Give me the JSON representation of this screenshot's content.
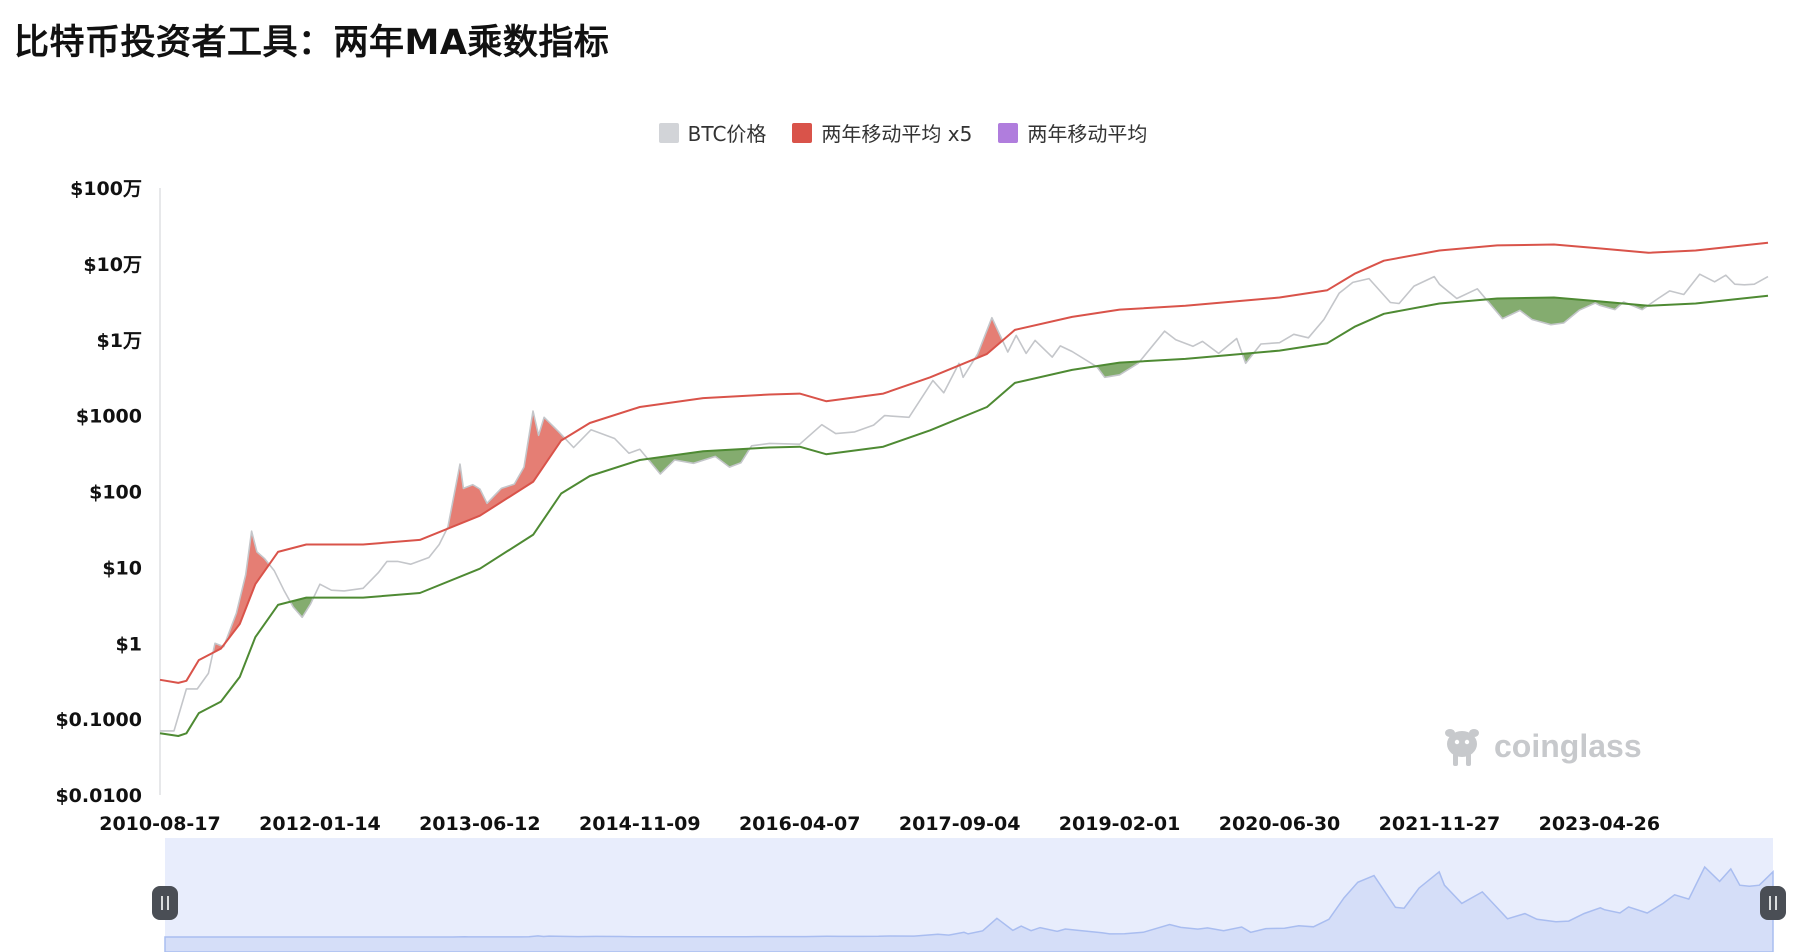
{
  "header": {
    "title": "比特币投资者工具：两年MA乘数指标"
  },
  "legend": [
    {
      "label": "BTC价格",
      "color": "#d2d4d8"
    },
    {
      "label": "两年移动平均 x5",
      "color": "#d9534a"
    },
    {
      "label": "两年移动平均",
      "color": "#b07ddd"
    }
  ],
  "watermark": {
    "text": "coinglass"
  },
  "colors": {
    "price": "#c4c6ca",
    "ma2y": "#4e8a33",
    "ma2y_x5": "#d9534a",
    "buy_fill": "#6e9e56",
    "sell_fill": "#e0675c",
    "navigator_bg": "#e8edfc",
    "navigator_line": "#a9bdf0"
  },
  "chart_data": {
    "type": "line",
    "y_scale": "log",
    "ylim": [
      0.01,
      1000000
    ],
    "y_ticks": [
      {
        "value": 0.01,
        "label": "$0.0100"
      },
      {
        "value": 0.1,
        "label": "$0.1000"
      },
      {
        "value": 1,
        "label": "$1"
      },
      {
        "value": 10,
        "label": "$10"
      },
      {
        "value": 100,
        "label": "$100"
      },
      {
        "value": 1000,
        "label": "$1000"
      },
      {
        "value": 10000,
        "label": "$1万"
      },
      {
        "value": 100000,
        "label": "$10万"
      },
      {
        "value": 1000000,
        "label": "$100万"
      }
    ],
    "xlim": [
      "2010-08-17",
      "2024-10-20"
    ],
    "x_ticks": [
      "2010-08-17",
      "2012-01-14",
      "2013-06-12",
      "2014-11-09",
      "2016-04-07",
      "2017-09-04",
      "2019-02-01",
      "2020-06-30",
      "2021-11-27",
      "2023-04-26"
    ],
    "series": [
      {
        "name": "BTC价格",
        "points": [
          [
            "2010-08-17",
            0.07
          ],
          [
            "2010-10-01",
            0.07
          ],
          [
            "2010-11-10",
            0.25
          ],
          [
            "2010-12-15",
            0.25
          ],
          [
            "2011-01-20",
            0.4
          ],
          [
            "2011-02-10",
            1
          ],
          [
            "2011-03-10",
            0.9
          ],
          [
            "2011-04-20",
            2.5
          ],
          [
            "2011-05-20",
            8
          ],
          [
            "2011-06-08",
            30
          ],
          [
            "2011-06-25",
            16
          ],
          [
            "2011-07-20",
            13
          ],
          [
            "2011-08-20",
            9
          ],
          [
            "2011-09-20",
            5
          ],
          [
            "2011-10-20",
            3
          ],
          [
            "2011-11-18",
            2.2
          ],
          [
            "2011-12-15",
            3.3
          ],
          [
            "2012-01-14",
            6
          ],
          [
            "2012-02-20",
            5
          ],
          [
            "2012-04-01",
            4.9
          ],
          [
            "2012-06-01",
            5.3
          ],
          [
            "2012-07-20",
            8.5
          ],
          [
            "2012-08-17",
            12
          ],
          [
            "2012-09-20",
            12
          ],
          [
            "2012-11-01",
            11
          ],
          [
            "2012-12-30",
            13.5
          ],
          [
            "2013-02-01",
            20
          ],
          [
            "2013-03-01",
            34
          ],
          [
            "2013-04-09",
            230
          ],
          [
            "2013-04-20",
            110
          ],
          [
            "2013-05-20",
            123
          ],
          [
            "2013-06-12",
            108
          ],
          [
            "2013-07-05",
            70
          ],
          [
            "2013-08-20",
            110
          ],
          [
            "2013-10-01",
            125
          ],
          [
            "2013-11-01",
            210
          ],
          [
            "2013-11-30",
            1150
          ],
          [
            "2013-12-18",
            550
          ],
          [
            "2014-01-05",
            950
          ],
          [
            "2014-02-20",
            620
          ],
          [
            "2014-04-10",
            380
          ],
          [
            "2014-06-05",
            650
          ],
          [
            "2014-08-20",
            500
          ],
          [
            "2014-10-05",
            320
          ],
          [
            "2014-11-09",
            360
          ],
          [
            "2015-01-14",
            170
          ],
          [
            "2015-03-01",
            260
          ],
          [
            "2015-05-01",
            235
          ],
          [
            "2015-07-10",
            290
          ],
          [
            "2015-08-25",
            210
          ],
          [
            "2015-10-01",
            240
          ],
          [
            "2015-11-04",
            400
          ],
          [
            "2016-01-01",
            430
          ],
          [
            "2016-04-07",
            420
          ],
          [
            "2016-06-17",
            760
          ],
          [
            "2016-08-01",
            580
          ],
          [
            "2016-10-01",
            610
          ],
          [
            "2016-12-01",
            750
          ],
          [
            "2017-01-05",
            1000
          ],
          [
            "2017-03-25",
            950
          ],
          [
            "2017-06-10",
            2900
          ],
          [
            "2017-07-15",
            2000
          ],
          [
            "2017-09-02",
            4900
          ],
          [
            "2017-09-15",
            3200
          ],
          [
            "2017-11-01",
            6500
          ],
          [
            "2017-12-17",
            19500
          ],
          [
            "2018-02-06",
            6900
          ],
          [
            "2018-03-05",
            11400
          ],
          [
            "2018-04-06",
            6600
          ],
          [
            "2018-05-05",
            9800
          ],
          [
            "2018-06-29",
            5900
          ],
          [
            "2018-07-25",
            8300
          ],
          [
            "2018-09-01",
            7000
          ],
          [
            "2018-11-20",
            4400
          ],
          [
            "2018-12-15",
            3200
          ],
          [
            "2019-02-01",
            3450
          ],
          [
            "2019-04-02",
            4900
          ],
          [
            "2019-06-26",
            13000
          ],
          [
            "2019-08-01",
            10000
          ],
          [
            "2019-09-25",
            8200
          ],
          [
            "2019-10-26",
            9500
          ],
          [
            "2019-12-17",
            6600
          ],
          [
            "2020-02-13",
            10400
          ],
          [
            "2020-03-13",
            4900
          ],
          [
            "2020-05-01",
            8800
          ],
          [
            "2020-06-30",
            9150
          ],
          [
            "2020-08-15",
            11800
          ],
          [
            "2020-10-01",
            10600
          ],
          [
            "2020-11-20",
            18500
          ],
          [
            "2021-01-08",
            41000
          ],
          [
            "2021-02-21",
            57000
          ],
          [
            "2021-04-14",
            64000
          ],
          [
            "2021-06-22",
            31000
          ],
          [
            "2021-07-20",
            30000
          ],
          [
            "2021-09-06",
            51000
          ],
          [
            "2021-11-10",
            68000
          ],
          [
            "2021-11-27",
            54000
          ],
          [
            "2022-01-22",
            35000
          ],
          [
            "2022-03-29",
            47000
          ],
          [
            "2022-06-18",
            19000
          ],
          [
            "2022-08-13",
            24400
          ],
          [
            "2022-09-21",
            18500
          ],
          [
            "2022-11-21",
            15800
          ],
          [
            "2023-01-01",
            16600
          ],
          [
            "2023-02-20",
            24500
          ],
          [
            "2023-04-13",
            30500
          ],
          [
            "2023-04-26",
            28500
          ],
          [
            "2023-06-15",
            25000
          ],
          [
            "2023-07-13",
            31400
          ],
          [
            "2023-09-11",
            25000
          ],
          [
            "2023-11-01",
            35000
          ],
          [
            "2023-12-08",
            44000
          ],
          [
            "2024-01-23",
            39500
          ],
          [
            "2024-03-14",
            73000
          ],
          [
            "2024-05-01",
            58000
          ],
          [
            "2024-06-06",
            71000
          ],
          [
            "2024-07-05",
            54000
          ],
          [
            "2024-08-05",
            53000
          ],
          [
            "2024-09-06",
            54000
          ],
          [
            "2024-10-20",
            68000
          ]
        ]
      },
      {
        "name": "两年移动平均 x5",
        "points": [
          [
            "2010-08-17",
            0.33
          ],
          [
            "2010-10-15",
            0.3
          ],
          [
            "2010-11-10",
            0.32
          ],
          [
            "2010-12-20",
            0.6
          ],
          [
            "2011-03-01",
            0.85
          ],
          [
            "2011-05-01",
            1.8
          ],
          [
            "2011-06-20",
            6
          ],
          [
            "2011-09-01",
            16
          ],
          [
            "2011-12-01",
            20
          ],
          [
            "2012-06-01",
            20
          ],
          [
            "2012-12-01",
            23
          ],
          [
            "2013-06-12",
            48
          ],
          [
            "2013-12-01",
            135
          ],
          [
            "2014-03-01",
            470
          ],
          [
            "2014-06-01",
            800
          ],
          [
            "2014-11-09",
            1300
          ],
          [
            "2015-06-01",
            1700
          ],
          [
            "2016-01-01",
            1900
          ],
          [
            "2016-04-07",
            1950
          ],
          [
            "2016-07-01",
            1550
          ],
          [
            "2017-01-01",
            1950
          ],
          [
            "2017-06-01",
            3200
          ],
          [
            "2017-12-01",
            6500
          ],
          [
            "2018-03-01",
            13500
          ],
          [
            "2018-09-01",
            20000
          ],
          [
            "2019-02-01",
            25000
          ],
          [
            "2019-09-01",
            28000
          ],
          [
            "2020-06-30",
            36000
          ],
          [
            "2020-12-01",
            45000
          ],
          [
            "2021-03-01",
            75000
          ],
          [
            "2021-06-01",
            110000
          ],
          [
            "2021-11-27",
            150000
          ],
          [
            "2022-06-01",
            175000
          ],
          [
            "2022-12-01",
            180000
          ],
          [
            "2023-04-26",
            160000
          ],
          [
            "2023-10-01",
            140000
          ],
          [
            "2024-03-01",
            150000
          ],
          [
            "2024-10-20",
            190000
          ]
        ]
      },
      {
        "name": "两年移动平均",
        "points": [
          [
            "2010-08-17",
            0.065
          ],
          [
            "2010-10-15",
            0.06
          ],
          [
            "2010-11-10",
            0.065
          ],
          [
            "2010-12-20",
            0.12
          ],
          [
            "2011-03-01",
            0.17
          ],
          [
            "2011-05-01",
            0.36
          ],
          [
            "2011-06-20",
            1.2
          ],
          [
            "2011-09-01",
            3.2
          ],
          [
            "2011-12-01",
            4
          ],
          [
            "2012-06-01",
            4
          ],
          [
            "2012-12-01",
            4.6
          ],
          [
            "2013-06-12",
            9.6
          ],
          [
            "2013-12-01",
            27
          ],
          [
            "2014-03-01",
            94
          ],
          [
            "2014-06-01",
            160
          ],
          [
            "2014-11-09",
            260
          ],
          [
            "2015-06-01",
            340
          ],
          [
            "2016-01-01",
            380
          ],
          [
            "2016-04-07",
            390
          ],
          [
            "2016-07-01",
            310
          ],
          [
            "2017-01-01",
            390
          ],
          [
            "2017-06-01",
            640
          ],
          [
            "2017-12-01",
            1300
          ],
          [
            "2018-03-01",
            2700
          ],
          [
            "2018-09-01",
            4000
          ],
          [
            "2019-02-01",
            5000
          ],
          [
            "2019-09-01",
            5600
          ],
          [
            "2020-06-30",
            7200
          ],
          [
            "2020-12-01",
            9000
          ],
          [
            "2021-03-01",
            15000
          ],
          [
            "2021-06-01",
            22000
          ],
          [
            "2021-11-27",
            30000
          ],
          [
            "2022-06-01",
            35000
          ],
          [
            "2022-12-01",
            36000
          ],
          [
            "2023-04-26",
            32000
          ],
          [
            "2023-10-01",
            28000
          ],
          [
            "2024-03-01",
            30000
          ],
          [
            "2024-10-20",
            38000
          ]
        ]
      }
    ]
  }
}
